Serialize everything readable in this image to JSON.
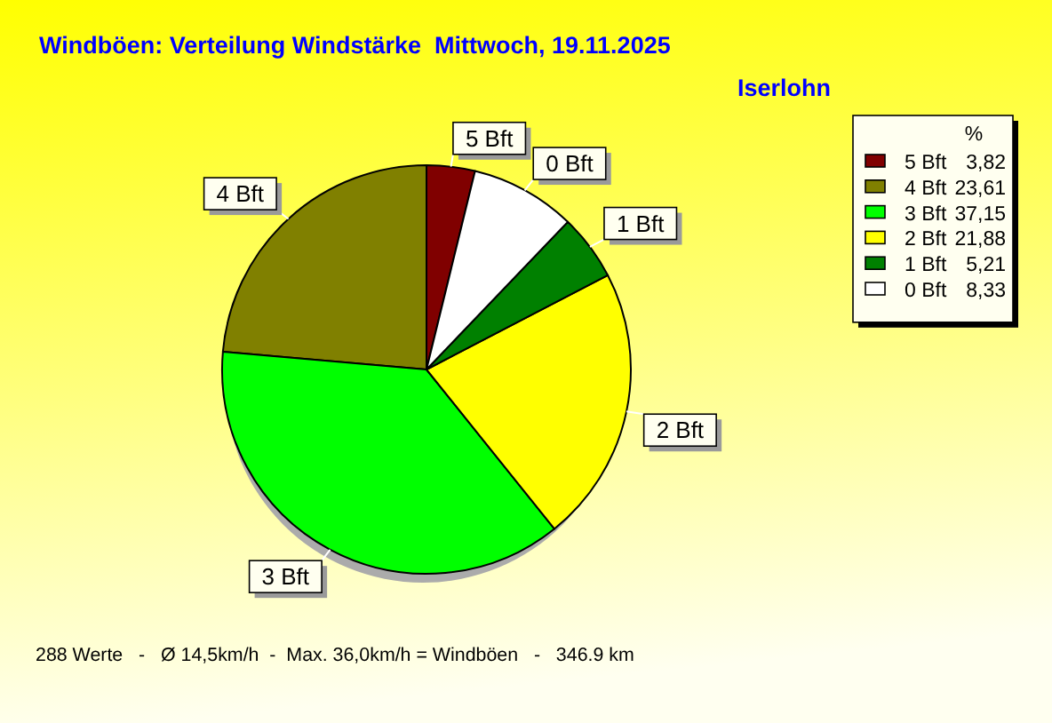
{
  "chart_data": {
    "type": "pie",
    "title": "Windböen: Verteilung Windstärke  Mittwoch, 19.11.2025",
    "subtitle": "Iserlohn",
    "categories": [
      "5 Bft",
      "4 Bft",
      "3 Bft",
      "2 Bft",
      "1 Bft",
      "0 Bft"
    ],
    "values": [
      3.82,
      23.61,
      37.15,
      21.88,
      5.21,
      8.33
    ],
    "colors": [
      "#800000",
      "#808000",
      "#00ff00",
      "#ffff00",
      "#008000",
      "#ffffff"
    ],
    "value_labels": [
      "3,82",
      "23,61",
      "37,15",
      "21,88",
      "5,21",
      "8,33"
    ],
    "legend_title": "%",
    "legend": "top right",
    "annotations": [
      "288 Werte   -   Ø 14,5km/h  -  Max. 36,0km/h = Windböen   -   346.9 km"
    ]
  }
}
